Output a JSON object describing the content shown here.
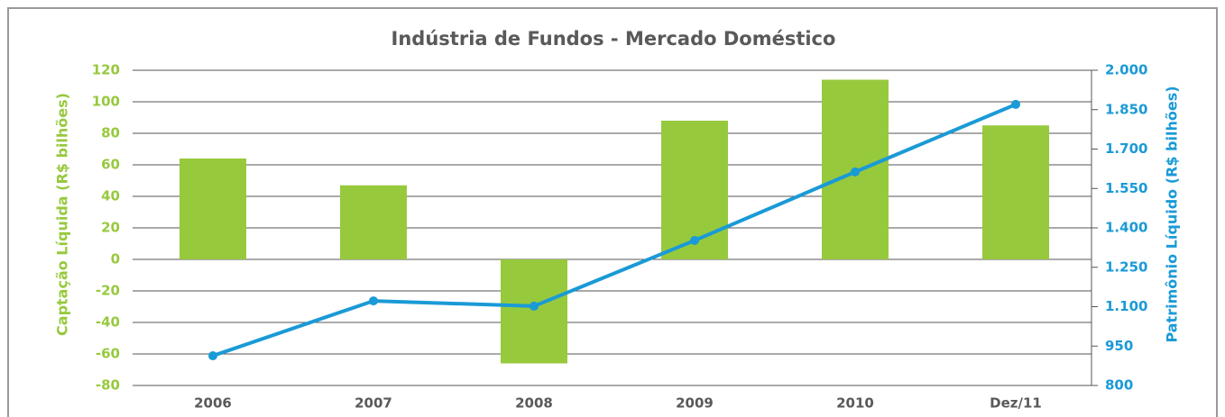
{
  "chart_data": {
    "type": "bar_line",
    "title": "Indústria de Fundos - Mercado Doméstico",
    "y_label": "Captação Líquida (R$ bilhões)",
    "y2_label": "Patrimônio Líquido (R$ bilhões)",
    "categories": [
      "2006",
      "2007",
      "2008",
      "2009",
      "2010",
      "Dez/11"
    ],
    "series": [
      {
        "name": "Captação Líquida",
        "type": "bar",
        "color": "#97c93d",
        "values": [
          64,
          47,
          -66,
          88,
          114,
          85
        ]
      },
      {
        "name": "Patrimônio Líquido",
        "type": "line",
        "axis": "y2",
        "color": "#1a9ad6",
        "values": [
          913,
          1122,
          1102,
          1352,
          1613,
          1870
        ]
      }
    ],
    "ylim": [
      -80,
      120
    ],
    "yticks": [
      -80,
      -60,
      -40,
      -20,
      0,
      20,
      40,
      60,
      80,
      100,
      120
    ],
    "y2lim": [
      800,
      2000
    ],
    "y2ticks": [
      {
        "value": 800,
        "label": "800"
      },
      {
        "value": 950,
        "label": "950"
      },
      {
        "value": 1100,
        "label": "1.100"
      },
      {
        "value": 1250,
        "label": "1.250"
      },
      {
        "value": 1400,
        "label": "1.400"
      },
      {
        "value": 1550,
        "label": "1.550"
      },
      {
        "value": 1700,
        "label": "1.700"
      },
      {
        "value": 1850,
        "label": "1.850"
      },
      {
        "value": 2000,
        "label": "2.000"
      }
    ],
    "grid": true
  }
}
